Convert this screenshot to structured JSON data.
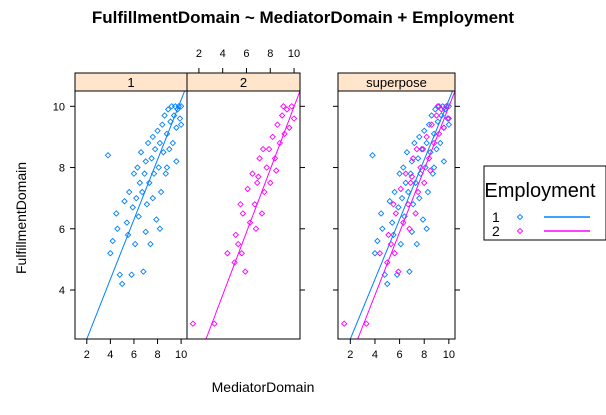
{
  "chart_data": {
    "type": "scatter",
    "title": "FulfillmentDomain ~ MediatorDomain + Employment",
    "xlabel": "MediatorDomain",
    "ylabel": "FulfillmentDomain",
    "xlim": [
      1,
      10.5
    ],
    "ylim": [
      2.4,
      10.5
    ],
    "x_ticks": [
      2,
      4,
      6,
      8,
      10
    ],
    "y_ticks": [
      4,
      6,
      8,
      10
    ],
    "grid": false,
    "panels": [
      "1",
      "2",
      "superpose"
    ],
    "legend": {
      "title": "Employment",
      "placement": "right",
      "levels": [
        "1",
        "2"
      ]
    },
    "series": [
      {
        "name": "1",
        "color": "#0080ff",
        "marker": "diamond",
        "fit_line": {
          "x": [
            2,
            10.3
          ],
          "y": [
            2.4,
            10.5
          ]
        },
        "points": [
          [
            3.8,
            8.4
          ],
          [
            4.0,
            5.2
          ],
          [
            4.2,
            5.6
          ],
          [
            4.5,
            6.5
          ],
          [
            4.6,
            6.0
          ],
          [
            4.8,
            4.5
          ],
          [
            5.0,
            4.2
          ],
          [
            5.2,
            6.9
          ],
          [
            5.4,
            6.2
          ],
          [
            5.5,
            5.8
          ],
          [
            5.6,
            7.2
          ],
          [
            5.8,
            4.5
          ],
          [
            5.9,
            6.7
          ],
          [
            6.0,
            7.8
          ],
          [
            6.1,
            5.5
          ],
          [
            6.2,
            7.0
          ],
          [
            6.3,
            8.0
          ],
          [
            6.4,
            6.4
          ],
          [
            6.5,
            7.5
          ],
          [
            6.6,
            8.5
          ],
          [
            6.7,
            7.2
          ],
          [
            6.8,
            4.6
          ],
          [
            6.9,
            7.8
          ],
          [
            7.0,
            8.2
          ],
          [
            7.1,
            6.8
          ],
          [
            7.2,
            8.8
          ],
          [
            7.3,
            7.5
          ],
          [
            7.4,
            5.5
          ],
          [
            7.5,
            8.3
          ],
          [
            7.6,
            9.0
          ],
          [
            7.7,
            7.8
          ],
          [
            7.8,
            8.6
          ],
          [
            7.9,
            6.3
          ],
          [
            8.0,
            9.2
          ],
          [
            8.1,
            8.0
          ],
          [
            8.2,
            8.8
          ],
          [
            8.3,
            7.2
          ],
          [
            8.4,
            9.4
          ],
          [
            8.5,
            8.5
          ],
          [
            8.6,
            9.7
          ],
          [
            8.7,
            7.8
          ],
          [
            8.8,
            9.1
          ],
          [
            8.9,
            9.9
          ],
          [
            9.0,
            8.6
          ],
          [
            9.1,
            9.5
          ],
          [
            9.2,
            10.0
          ],
          [
            9.3,
            8.8
          ],
          [
            9.4,
            9.7
          ],
          [
            9.5,
            10.0
          ],
          [
            9.6,
            9.3
          ],
          [
            9.7,
            9.9
          ],
          [
            9.8,
            10.0
          ],
          [
            9.9,
            9.6
          ],
          [
            10.0,
            10.0
          ],
          [
            10.0,
            9.4
          ],
          [
            9.6,
            8.2
          ],
          [
            8.2,
            6.0
          ],
          [
            7.0,
            5.9
          ],
          [
            7.6,
            7.0
          ],
          [
            8.8,
            8.0
          ]
        ]
      },
      {
        "name": "2",
        "color": "#ff00ff",
        "marker": "diamond",
        "fit_line": {
          "x": [
            2.6,
            10.5
          ],
          "y": [
            2.4,
            10.5
          ]
        },
        "points": [
          [
            1.5,
            2.9
          ],
          [
            3.3,
            2.9
          ],
          [
            4.4,
            5.2
          ],
          [
            5.0,
            4.9
          ],
          [
            5.1,
            5.8
          ],
          [
            5.3,
            5.5
          ],
          [
            5.5,
            6.8
          ],
          [
            5.7,
            6.5
          ],
          [
            5.9,
            4.6
          ],
          [
            6.1,
            7.3
          ],
          [
            6.3,
            6.2
          ],
          [
            6.5,
            7.8
          ],
          [
            6.7,
            6.8
          ],
          [
            6.9,
            7.5
          ],
          [
            7.1,
            8.3
          ],
          [
            7.3,
            6.5
          ],
          [
            7.5,
            7.2
          ],
          [
            7.7,
            8.0
          ],
          [
            7.9,
            8.6
          ],
          [
            8.0,
            7.5
          ],
          [
            8.2,
            9.0
          ],
          [
            8.4,
            8.3
          ],
          [
            8.6,
            9.4
          ],
          [
            8.8,
            8.8
          ],
          [
            9.0,
            9.7
          ],
          [
            9.2,
            9.1
          ],
          [
            9.4,
            9.9
          ],
          [
            9.6,
            9.3
          ],
          [
            9.8,
            10.0
          ],
          [
            10.0,
            9.6
          ],
          [
            7.0,
            7.7
          ],
          [
            7.4,
            8.6
          ],
          [
            6.8,
            6.0
          ],
          [
            8.5,
            7.9
          ],
          [
            9.1,
            10.0
          ],
          [
            5.6,
            5.2
          ]
        ]
      }
    ]
  }
}
